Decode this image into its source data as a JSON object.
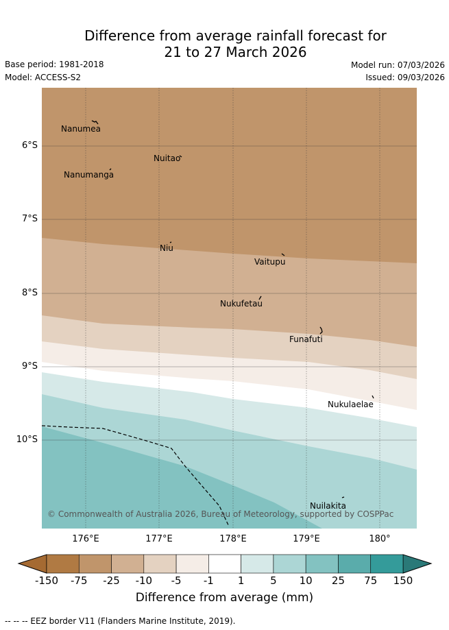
{
  "header": {
    "title_line1": "Difference from average rainfall forecast for",
    "title_line2": "21 to 27 March 2026",
    "base_period": "Base period: 1981-2018",
    "model": "Model: ACCESS-S2",
    "model_run": "Model run: 07/03/2026",
    "issued": "Issued: 09/03/2026"
  },
  "map": {
    "lat_labels": [
      "6°S",
      "7°S",
      "8°S",
      "9°S",
      "10°S"
    ],
    "lon_labels": [
      "176°E",
      "177°E",
      "178°E",
      "179°E",
      "180°"
    ],
    "places": [
      {
        "name": "Nanumea",
        "id": "nanumea"
      },
      {
        "name": "Nuitao",
        "id": "nuitao"
      },
      {
        "name": "Nanumanga",
        "id": "nanumanga"
      },
      {
        "name": "Niu",
        "id": "niu"
      },
      {
        "name": "Vaitupu",
        "id": "vaitupu"
      },
      {
        "name": "Nukufetau",
        "id": "nukufetau"
      },
      {
        "name": "Funafuti",
        "id": "funafuti"
      },
      {
        "name": "Nukulaelae",
        "id": "nukulaelae"
      },
      {
        "name": "Nuilakita",
        "id": "nuilakita"
      }
    ],
    "copyright": "© Commonwealth of Australia 2026, Bureau of Meteorology, supported by COSPPac"
  },
  "legend": {
    "ticks": [
      "-150",
      "-75",
      "-25",
      "-10",
      "-5",
      "-1",
      "1",
      "5",
      "10",
      "25",
      "75",
      "150"
    ],
    "colors": [
      "#a56a32",
      "#b07a43",
      "#c0956b",
      "#d1b092",
      "#e4d2c1",
      "#f5ede7",
      "#ffffff",
      "#d6e9e8",
      "#acd6d5",
      "#83c2c1",
      "#5aacab",
      "#349b9a",
      "#2a7978"
    ],
    "title": "Difference from average (mm)"
  },
  "footnote": "-- -- -- EEZ border V11 (Flanders Marine Institute, 2019)."
}
